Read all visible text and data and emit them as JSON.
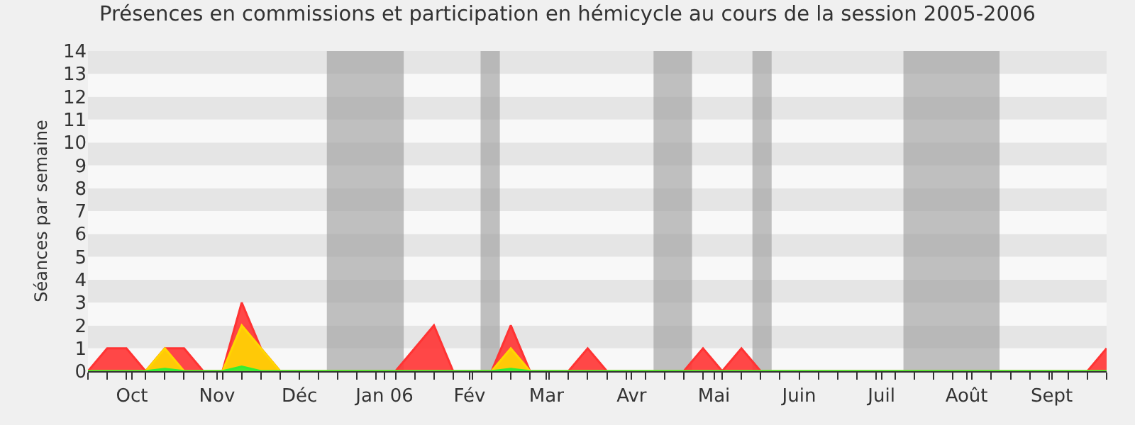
{
  "chart_data": {
    "type": "area",
    "title": "Présences en commissions et participation en hémicycle au cours de la session 2005-2006",
    "ylabel": "Séances par semaine",
    "x": [
      "2005-09-29",
      "2005-10-06",
      "2005-10-13",
      "2005-10-20",
      "2005-10-27",
      "2005-11-03",
      "2005-11-10",
      "2005-11-17",
      "2005-11-24",
      "2005-12-01",
      "2005-12-08",
      "2005-12-15",
      "2005-12-22",
      "2005-12-29",
      "2006-01-05",
      "2006-01-12",
      "2006-01-19",
      "2006-01-26",
      "2006-02-02",
      "2006-02-09",
      "2006-02-16",
      "2006-02-23",
      "2006-03-02",
      "2006-03-09",
      "2006-03-16",
      "2006-03-23",
      "2006-03-30",
      "2006-04-06",
      "2006-04-13",
      "2006-04-20",
      "2006-04-27",
      "2006-05-04",
      "2006-05-11",
      "2006-05-18",
      "2006-05-25",
      "2006-06-01",
      "2006-06-08",
      "2006-06-15",
      "2006-06-22",
      "2006-06-29",
      "2006-07-06",
      "2006-07-13",
      "2006-07-20",
      "2006-07-27",
      "2006-08-03",
      "2006-08-10",
      "2006-08-17",
      "2006-08-24",
      "2006-08-31",
      "2006-09-07",
      "2006-09-14",
      "2006-09-21",
      "2006-09-28",
      "2006-10-05"
    ],
    "series": [
      {
        "color": "#ff3333",
        "values": [
          0,
          1,
          1,
          0,
          1,
          1,
          0,
          0,
          3,
          1,
          0,
          0,
          0,
          0,
          0,
          0,
          0,
          1,
          2,
          0,
          0,
          0,
          2,
          0,
          0,
          0,
          1,
          0,
          0,
          0,
          0,
          0,
          1,
          0,
          1,
          0,
          0,
          0,
          0,
          0,
          0,
          0,
          0,
          0,
          0,
          0,
          0,
          0,
          0,
          0,
          0,
          0,
          0,
          1
        ]
      },
      {
        "color": "#ffd700",
        "values": [
          0,
          0,
          0,
          0,
          1,
          0,
          0,
          0,
          2,
          1,
          0,
          0,
          0,
          0,
          0,
          0,
          0,
          0,
          0,
          0,
          0,
          0,
          1,
          0,
          0,
          0,
          0,
          0,
          0,
          0,
          0,
          0,
          0,
          0,
          0,
          0,
          0,
          0,
          0,
          0,
          0,
          0,
          0,
          0,
          0,
          0,
          0,
          0,
          0,
          0,
          0,
          0,
          0,
          0
        ]
      },
      {
        "color": "#33ee33",
        "values": [
          0,
          0,
          0,
          0,
          0.1,
          0,
          0,
          0,
          0.2,
          0,
          0,
          0,
          0,
          0,
          0,
          0,
          0,
          0,
          0,
          0,
          0,
          0,
          0.1,
          0,
          0,
          0,
          0,
          0,
          0,
          0,
          0,
          0,
          0,
          0,
          0,
          0,
          0,
          0,
          0,
          0,
          0,
          0,
          0,
          0,
          0,
          0,
          0,
          0,
          0,
          0,
          0,
          0,
          0,
          0
        ]
      }
    ],
    "xlim": [
      "2005-09-29",
      "2006-10-05"
    ],
    "xticks": [
      {
        "value": "2005-10-15",
        "label": "Oct"
      },
      {
        "value": "2005-11-15",
        "label": "Nov"
      },
      {
        "value": "2005-12-15",
        "label": "Déc"
      },
      {
        "value": "2006-01-15",
        "label": "Jan 06"
      },
      {
        "value": "2006-02-15",
        "label": "Fév"
      },
      {
        "value": "2006-03-15",
        "label": "Mar"
      },
      {
        "value": "2006-04-15",
        "label": "Avr"
      },
      {
        "value": "2006-05-15",
        "label": "Mai"
      },
      {
        "value": "2006-06-15",
        "label": "Juin"
      },
      {
        "value": "2006-07-15",
        "label": "Juil"
      },
      {
        "value": "2006-08-15",
        "label": "Août"
      },
      {
        "value": "2006-09-15",
        "label": "Sept"
      }
    ],
    "ylim": [
      0,
      14
    ],
    "yticks": [
      0,
      1,
      2,
      3,
      4,
      5,
      6,
      7,
      8,
      9,
      10,
      11,
      12,
      13,
      14
    ],
    "bands": [
      {
        "axis": "x",
        "from": "2005-12-25",
        "to": "2006-01-22",
        "color": "#999999"
      },
      {
        "axis": "x",
        "from": "2006-02-19",
        "to": "2006-02-26",
        "color": "#999999"
      },
      {
        "axis": "x",
        "from": "2006-04-23",
        "to": "2006-05-07",
        "color": "#999999"
      },
      {
        "axis": "x",
        "from": "2006-05-29",
        "to": "2006-06-05",
        "color": "#999999"
      },
      {
        "axis": "x",
        "from": "2006-07-23",
        "to": "2006-08-27",
        "color": "#999999"
      }
    ],
    "marker": "none"
  }
}
